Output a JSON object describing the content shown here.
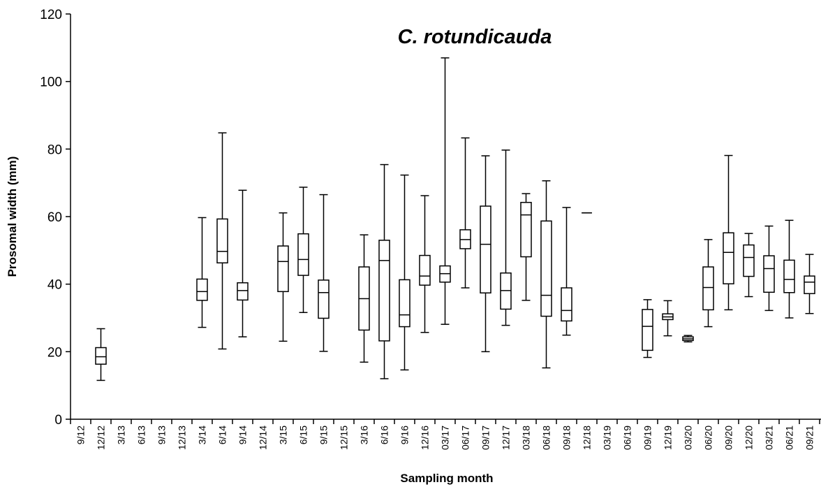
{
  "chart_data": {
    "type": "boxplot",
    "title": "C. rotundicauda",
    "xlabel": "Sampling month",
    "ylabel": "Prosomal width (mm)",
    "ylim": [
      0,
      120
    ],
    "yticks": [
      0,
      20,
      40,
      60,
      80,
      100,
      120
    ],
    "grid": false,
    "categories": [
      "9/12",
      "12/12",
      "3/13",
      "6/13",
      "9/13",
      "12/13",
      "3/14",
      "6/14",
      "9/14",
      "12/14",
      "3/15",
      "6/15",
      "9/15",
      "12/15",
      "3/16",
      "6/16",
      "9/16",
      "12/16",
      "03/17",
      "06/17",
      "09/17",
      "12/17",
      "03/18",
      "06/18",
      "09/18",
      "12/18",
      "03/19",
      "06/19",
      "09/19",
      "12/19",
      "03/20",
      "06/20",
      "09/20",
      "12/20",
      "03/21",
      "06/21",
      "09/21"
    ],
    "boxes": [
      null,
      {
        "min": 11.5,
        "q1": 16.3,
        "median": 18.5,
        "q3": 21.2,
        "max": 26.8
      },
      null,
      null,
      null,
      null,
      {
        "min": 27.2,
        "q1": 35.2,
        "median": 37.8,
        "q3": 41.5,
        "max": 59.7
      },
      {
        "min": 20.8,
        "q1": 46.3,
        "median": 49.7,
        "q3": 59.3,
        "max": 84.8
      },
      {
        "min": 24.4,
        "q1": 35.3,
        "median": 38.1,
        "q3": 40.4,
        "max": 67.8
      },
      null,
      {
        "min": 23.1,
        "q1": 37.8,
        "median": 46.7,
        "q3": 51.3,
        "max": 61.1
      },
      {
        "min": 31.6,
        "q1": 42.6,
        "median": 47.3,
        "q3": 54.9,
        "max": 68.7
      },
      {
        "min": 20.1,
        "q1": 29.9,
        "median": 37.5,
        "q3": 41.2,
        "max": 66.5
      },
      null,
      {
        "min": 16.9,
        "q1": 26.4,
        "median": 35.7,
        "q3": 45.1,
        "max": 54.6
      },
      {
        "min": 12.0,
        "q1": 23.2,
        "median": 47.0,
        "q3": 53.0,
        "max": 75.4
      },
      {
        "min": 14.6,
        "q1": 27.4,
        "median": 30.9,
        "q3": 41.3,
        "max": 72.3
      },
      {
        "min": 25.7,
        "q1": 39.7,
        "median": 42.4,
        "q3": 48.5,
        "max": 66.2
      },
      {
        "min": 28.1,
        "q1": 40.6,
        "median": 43.1,
        "q3": 45.4,
        "max": 107.0
      },
      {
        "min": 38.9,
        "q1": 50.5,
        "median": 53.2,
        "q3": 56.1,
        "max": 83.3
      },
      {
        "min": 20.0,
        "q1": 37.4,
        "median": 51.8,
        "q3": 63.1,
        "max": 78.0
      },
      {
        "min": 27.8,
        "q1": 32.6,
        "median": 38.1,
        "q3": 43.3,
        "max": 79.7
      },
      {
        "min": 35.2,
        "q1": 48.1,
        "median": 60.5,
        "q3": 64.2,
        "max": 66.8
      },
      {
        "min": 15.2,
        "q1": 30.5,
        "median": 36.7,
        "q3": 58.7,
        "max": 70.6
      },
      {
        "min": 24.9,
        "q1": 29.1,
        "median": 32.2,
        "q3": 38.9,
        "max": 62.7
      },
      {
        "min": 61.1,
        "q1": 61.1,
        "median": 61.1,
        "q3": 61.1,
        "max": 61.1
      },
      null,
      null,
      {
        "min": 18.3,
        "q1": 20.4,
        "median": 27.5,
        "q3": 32.5,
        "max": 35.4
      },
      {
        "min": 24.7,
        "q1": 29.5,
        "median": 30.3,
        "q3": 31.2,
        "max": 35.1
      },
      {
        "min": 22.9,
        "q1": 23.3,
        "median": 23.8,
        "q3": 24.4,
        "max": 24.8
      },
      {
        "min": 27.4,
        "q1": 32.4,
        "median": 39.0,
        "q3": 45.1,
        "max": 53.2
      },
      {
        "min": 32.4,
        "q1": 40.1,
        "median": 49.4,
        "q3": 55.2,
        "max": 78.1
      },
      {
        "min": 36.3,
        "q1": 42.3,
        "median": 47.9,
        "q3": 51.6,
        "max": 55.0
      },
      {
        "min": 32.2,
        "q1": 37.6,
        "median": 44.6,
        "q3": 48.4,
        "max": 57.2
      },
      {
        "min": 30.0,
        "q1": 37.5,
        "median": 41.4,
        "q3": 47.1,
        "max": 58.9
      },
      {
        "min": 31.3,
        "q1": 37.2,
        "median": 40.6,
        "q3": 42.4,
        "max": 48.8
      }
    ]
  }
}
